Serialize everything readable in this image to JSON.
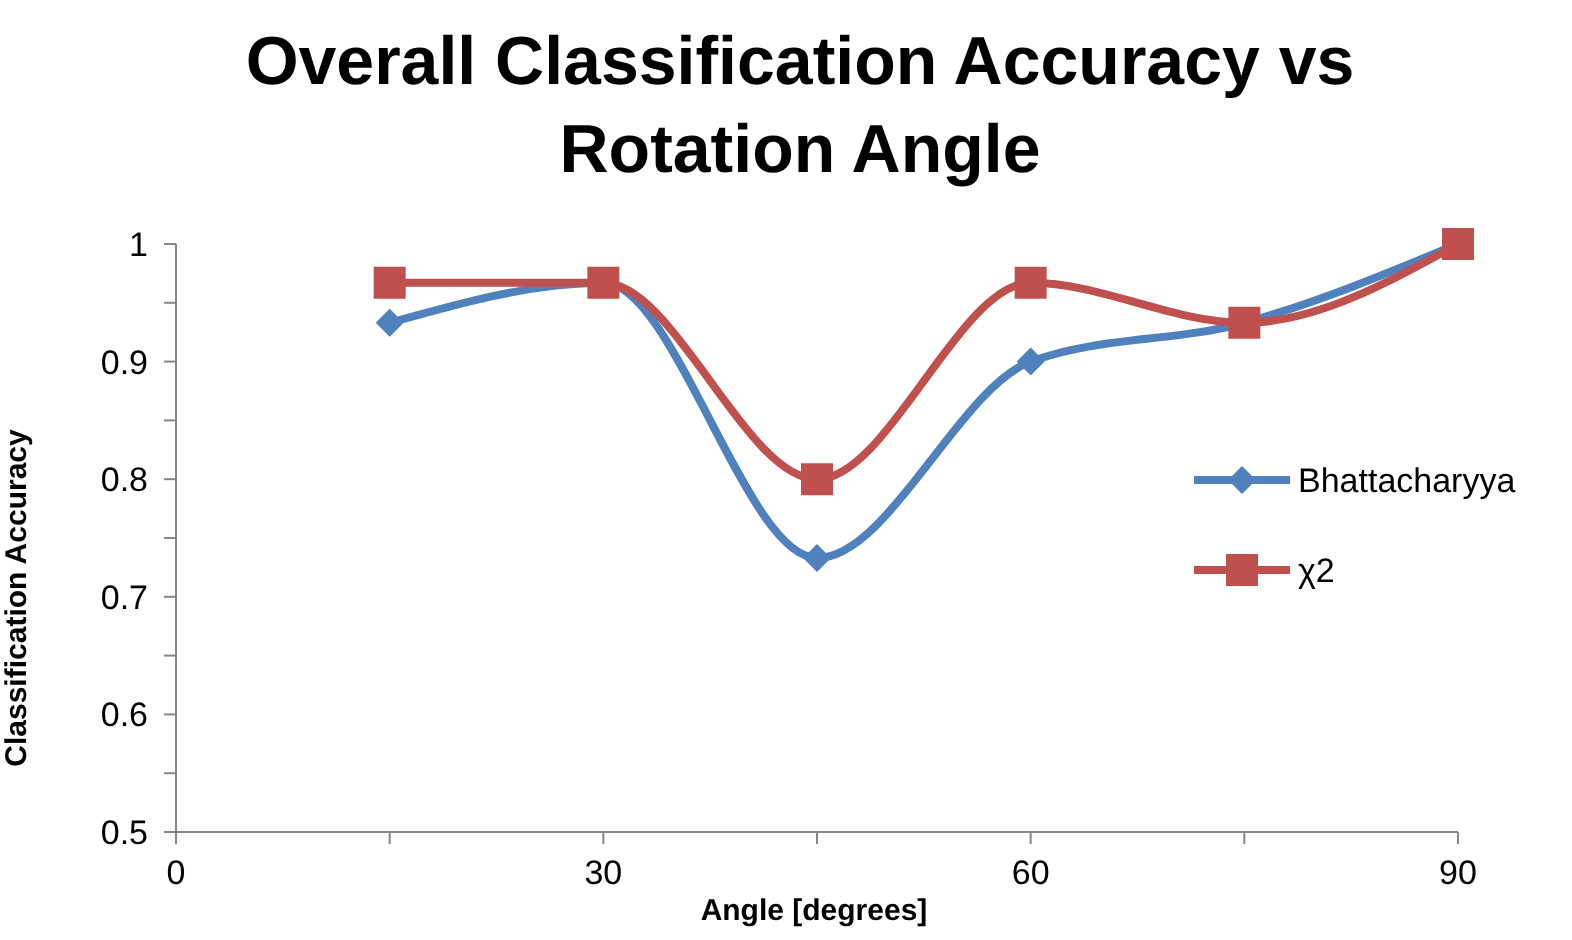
{
  "chart_data": {
    "type": "line",
    "title": "Overall Classification Accuracy vs Rotation Angle",
    "xlabel": "Angle [degrees]",
    "ylabel": "Classification Accuracy",
    "x": [
      15,
      30,
      45,
      60,
      75,
      90
    ],
    "series": [
      {
        "name": "Bhattacharyya",
        "color": "#4f81bd",
        "marker": "diamond",
        "values": [
          0.933,
          0.967,
          0.733,
          0.9,
          0.933,
          1
        ]
      },
      {
        "name": "χ2",
        "color": "#c0504d",
        "marker": "square",
        "values": [
          0.967,
          0.967,
          0.8,
          0.967,
          0.933,
          1
        ]
      }
    ],
    "xlim": [
      0,
      90
    ],
    "xticks": [
      0,
      {
        "value": 15,
        "label": null
      },
      30,
      {
        "value": 45,
        "label": null
      },
      60,
      {
        "value": 75,
        "label": null
      },
      90
    ],
    "ylim": [
      0.5,
      1
    ],
    "yticks": [
      0.5,
      {
        "value": 0.55,
        "label": null
      },
      0.6,
      {
        "value": 0.65,
        "label": null
      },
      0.7,
      {
        "value": 0.75,
        "label": null
      },
      0.8,
      {
        "value": 0.85,
        "label": null
      },
      0.9,
      {
        "value": 0.95,
        "label": null
      },
      1
    ],
    "grid": false,
    "legend": "right",
    "line_style": "solid"
  }
}
